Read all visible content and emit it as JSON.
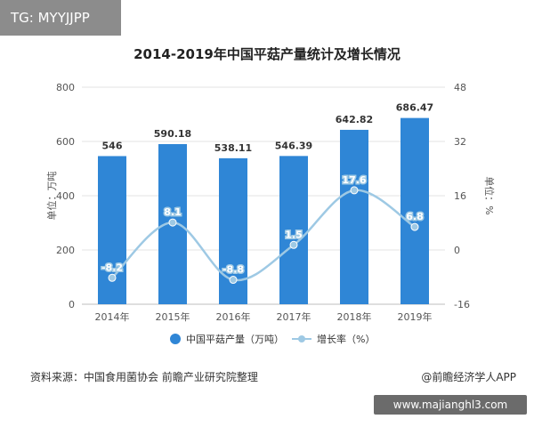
{
  "watermark_tag": "TG: MYYJJPP",
  "source_text": "资料来源：中国食用菌协会 前瞻产业研究院整理",
  "credit_text": "@前瞻经济学人APP",
  "url_text": "www.majianghl3.com",
  "chart_data": {
    "type": "bar",
    "title": "2014-2019年中国平菇产量统计及增长情况",
    "categories": [
      "2014年",
      "2015年",
      "2016年",
      "2017年",
      "2018年",
      "2019年"
    ],
    "left_axis": {
      "label": "单位：万吨",
      "range": [
        0,
        800
      ],
      "ticks": [
        "0",
        "200",
        "400",
        "600",
        "800"
      ]
    },
    "right_axis": {
      "label": "单位：%",
      "range": [
        -16,
        48
      ],
      "ticks": [
        "-16",
        "0",
        "16",
        "32",
        "48"
      ]
    },
    "series": [
      {
        "name": "中国平菇产量（万吨）",
        "type": "bar",
        "axis": "left",
        "color": "#2f86d6",
        "values": [
          546,
          590.18,
          538.11,
          546.39,
          642.82,
          686.47
        ],
        "labels": [
          "546",
          "590.18",
          "538.11",
          "546.39",
          "642.82",
          "686.47"
        ]
      },
      {
        "name": "增长率（%）",
        "type": "line",
        "axis": "right",
        "color": "#9ec9e4",
        "values": [
          -8.2,
          8.1,
          -8.8,
          1.5,
          17.6,
          6.8
        ],
        "labels": [
          "-8.2",
          "8.1",
          "-8.8",
          "1.5",
          "17.6",
          "6.8"
        ]
      }
    ],
    "legend": "bottom",
    "grid": true
  }
}
